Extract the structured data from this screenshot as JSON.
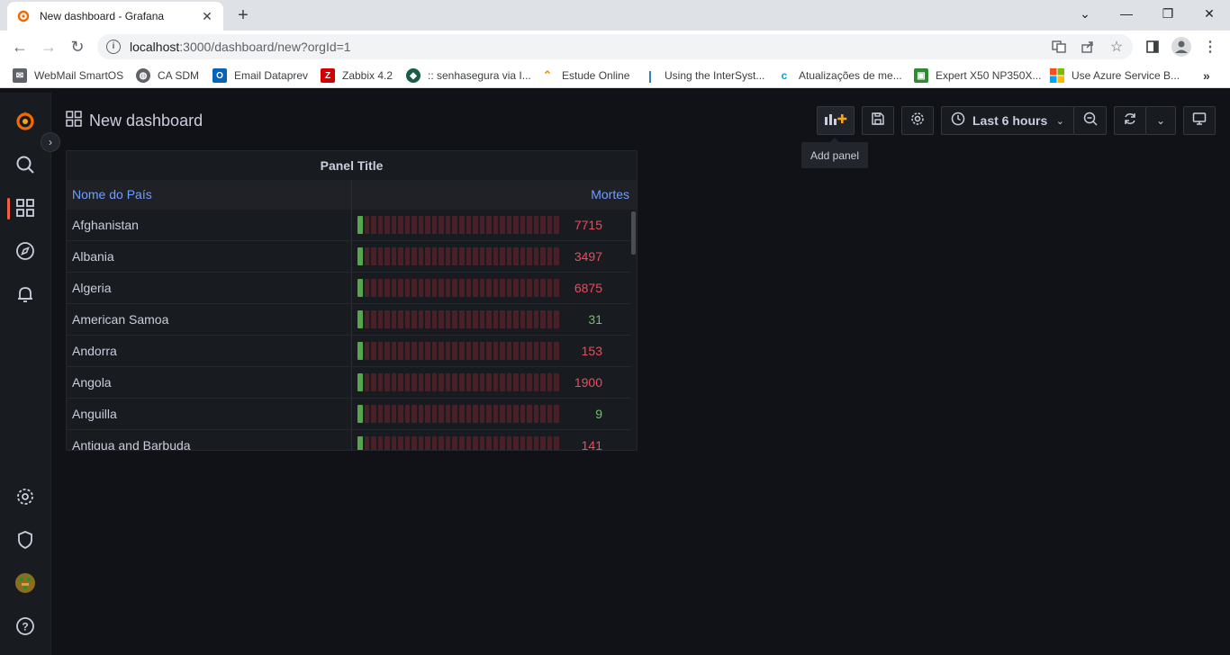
{
  "browser": {
    "tab_title": "New dashboard - Grafana",
    "url_host": "localhost",
    "url_rest": ":3000/dashboard/new?orgId=1",
    "bookmarks": [
      {
        "label": "WebMail SmartOS",
        "icon": "mail-icon",
        "color": "#5f6368"
      },
      {
        "label": "CA SDM",
        "icon": "globe-icon",
        "color": "#5f6368"
      },
      {
        "label": "Email Dataprev",
        "icon": "outlook-icon",
        "color": "#0364b8"
      },
      {
        "label": "Zabbix 4.2",
        "icon": "zabbix-icon",
        "color": "#d40000"
      },
      {
        "label": ":: senhasegura via I...",
        "icon": "shield-icon",
        "color": "#1a5c45"
      },
      {
        "label": "Estude Online",
        "icon": "graduation-icon",
        "color": "#f29111"
      },
      {
        "label": "Using the InterSyst...",
        "icon": "intersystems-icon",
        "color": "#1a73b8"
      },
      {
        "label": "Atualizações de me...",
        "icon": "c-icon",
        "color": "#00a3d9"
      },
      {
        "label": "Expert X50 NP350X...",
        "icon": "floppy-icon",
        "color": "#2f8b2f"
      },
      {
        "label": "Use Azure Service B...",
        "icon": "microsoft-icon",
        "color": "#f25022"
      }
    ]
  },
  "grafana": {
    "dashboard_title": "New dashboard",
    "time_picker": "Last 6 hours",
    "tooltip": "Add panel",
    "panel": {
      "title": "Panel Title",
      "columns": [
        "Nome do País",
        "Mortes"
      ],
      "rows": [
        {
          "country": "Afghanistan",
          "deaths": "7715",
          "color": "#f2495c"
        },
        {
          "country": "Albania",
          "deaths": "3497",
          "color": "#f2495c"
        },
        {
          "country": "Algeria",
          "deaths": "6875",
          "color": "#f2495c"
        },
        {
          "country": "American Samoa",
          "deaths": "31",
          "color": "#73bf69"
        },
        {
          "country": "Andorra",
          "deaths": "153",
          "color": "#f2495c"
        },
        {
          "country": "Angola",
          "deaths": "1900",
          "color": "#f2495c"
        },
        {
          "country": "Anguilla",
          "deaths": "9",
          "color": "#73bf69"
        },
        {
          "country": "Antigua and Barbuda",
          "deaths": "141",
          "color": "#f2495c"
        }
      ]
    },
    "accent_color": "#f55f3e",
    "link_color": "#6e9fff"
  }
}
